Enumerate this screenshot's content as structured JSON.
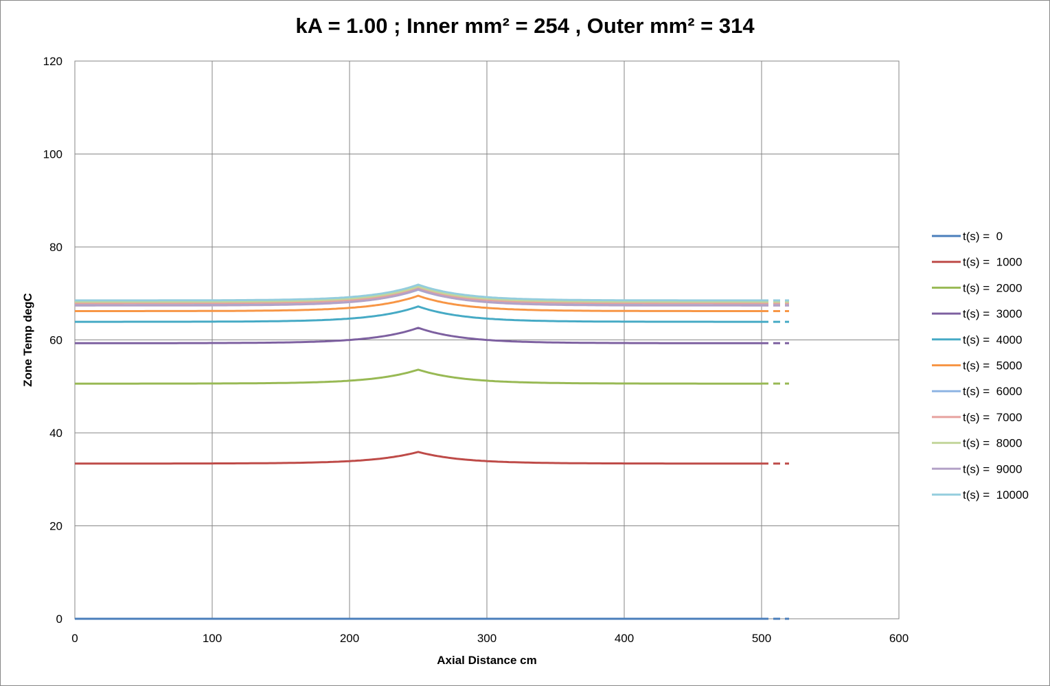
{
  "chart_data": {
    "type": "line",
    "title": "kA =  1.00 ; Inner  mm² =  254 , Outer  mm² = 314",
    "xlabel": "Axial Distance  cm",
    "ylabel": "Zone Temp degC",
    "xlim": [
      0,
      600
    ],
    "ylim": [
      0,
      120
    ],
    "xticks": [
      0,
      100,
      200,
      300,
      400,
      500,
      600
    ],
    "yticks": [
      0,
      20,
      40,
      60,
      80,
      100,
      120
    ],
    "grid": true,
    "legend_position": "right",
    "solid_x_end": 500,
    "dashed_x_end": 520,
    "peak_x": 250,
    "series": [
      {
        "name": "t(s) =  0",
        "color": "#4a7ebb",
        "base": 0.0,
        "peak": 0.0
      },
      {
        "name": "t(s) =  1000",
        "color": "#be4b48",
        "base": 33.4,
        "peak": 35.9
      },
      {
        "name": "t(s) =  2000",
        "color": "#98b954",
        "base": 50.6,
        "peak": 53.6
      },
      {
        "name": "t(s) =  3000",
        "color": "#7d60a0",
        "base": 59.3,
        "peak": 62.6
      },
      {
        "name": "t(s) =  4000",
        "color": "#46aac5",
        "base": 63.9,
        "peak": 67.2
      },
      {
        "name": "t(s) =  5000",
        "color": "#f79646",
        "base": 66.2,
        "peak": 69.5
      },
      {
        "name": "t(s) =  6000",
        "color": "#8eb4e3",
        "base": 67.5,
        "peak": 70.8
      },
      {
        "name": "t(s) =  7000",
        "color": "#e6a19e",
        "base": 67.9,
        "peak": 71.2
      },
      {
        "name": "t(s) =  8000",
        "color": "#c3d69b",
        "base": 68.2,
        "peak": 71.5
      },
      {
        "name": "t(s) =  9000",
        "color": "#b3a2c7",
        "base": 67.4,
        "peak": 70.9
      },
      {
        "name": "t(s) =  10000",
        "color": "#93cddd",
        "base": 68.5,
        "peak": 71.9
      }
    ]
  },
  "colors": {
    "gridline": "#868686",
    "plot_border": "#868686"
  }
}
